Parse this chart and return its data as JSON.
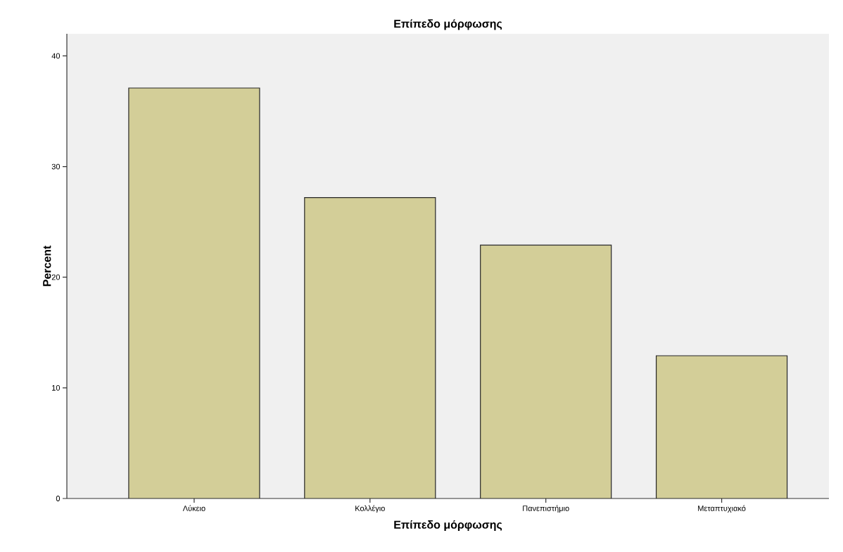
{
  "chart_data": {
    "type": "bar",
    "title": "Επίπεδο μόρφωσης",
    "xlabel": "Επίπεδο μόρφωσης",
    "ylabel": "Percent",
    "categories": [
      "Λύκειο",
      "Κολλέγιο",
      "Πανεπιστήμιο",
      "Μεταπτυχιακό"
    ],
    "values": [
      37.1,
      27.2,
      22.9,
      12.9
    ],
    "color": "#d3ce98",
    "ylim": [
      0,
      42
    ],
    "yticks": [
      0,
      10,
      20,
      30,
      40
    ]
  }
}
